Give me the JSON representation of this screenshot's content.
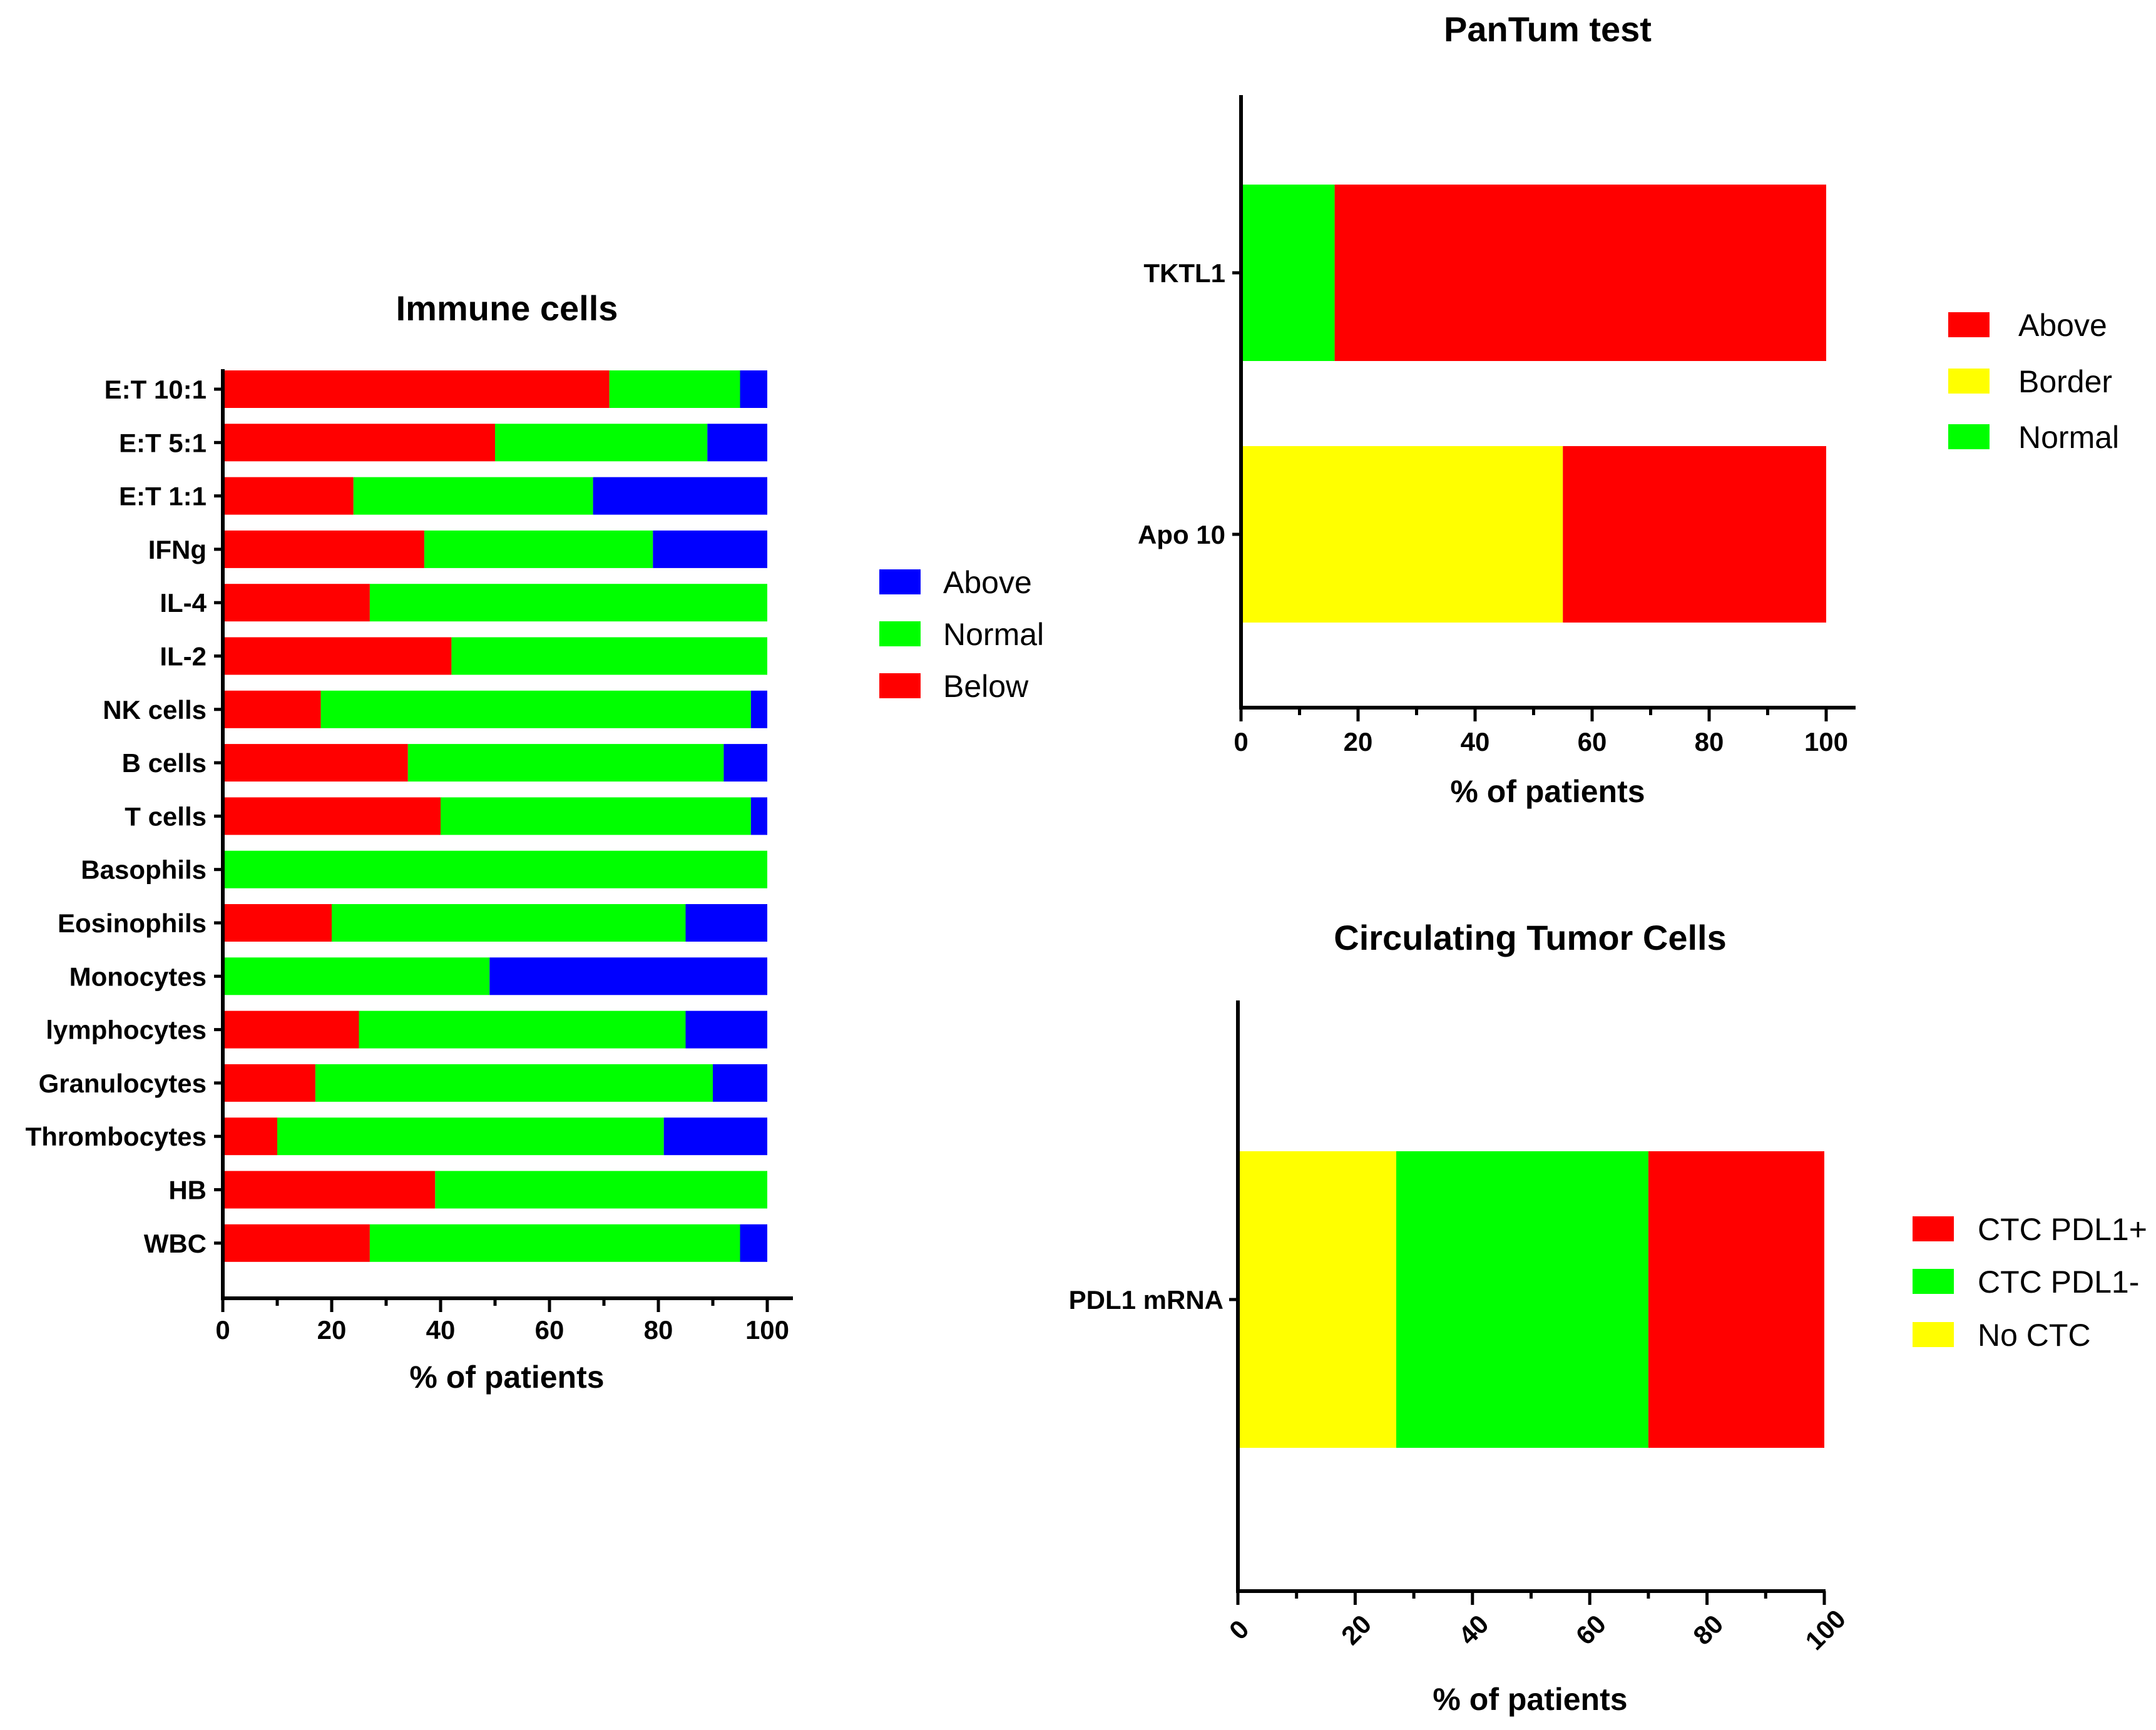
{
  "chart_data": [
    {
      "id": "immune",
      "type": "bar",
      "orientation": "horizontal",
      "stacked": true,
      "title": "Immune cells",
      "xlabel": "% of patients",
      "ylabel": "",
      "xlim": [
        0,
        100
      ],
      "xticks": [
        "0",
        "20",
        "40",
        "60",
        "80",
        "100"
      ],
      "categories": [
        "E:T 10:1",
        "E:T 5:1",
        "E:T 1:1",
        "IFNg",
        "IL-4",
        "IL-2",
        "NK cells",
        "B cells",
        "T cells",
        "Basophils",
        "Eosinophils",
        "Monocytes",
        "lymphocytes",
        "Granulocytes",
        "Thrombocytes",
        "HB",
        "WBC"
      ],
      "series": [
        {
          "name": "Below",
          "color": "#ff0000",
          "values": [
            71,
            50,
            24,
            37,
            27,
            42,
            18,
            34,
            40,
            0,
            20,
            0,
            25,
            17,
            10,
            39,
            27
          ]
        },
        {
          "name": "Normal",
          "color": "#00ff00",
          "values": [
            24,
            39,
            44,
            42,
            73,
            58,
            79,
            58,
            57,
            100,
            65,
            49,
            60,
            73,
            71,
            61,
            68
          ]
        },
        {
          "name": "Above",
          "color": "#0000ff",
          "values": [
            5,
            11,
            32,
            21,
            0,
            0,
            3,
            8,
            3,
            0,
            15,
            51,
            15,
            10,
            19,
            0,
            5
          ]
        }
      ],
      "legend": [
        "Above",
        "Normal",
        "Below"
      ],
      "legend_position": "right"
    },
    {
      "id": "pantum",
      "type": "bar",
      "orientation": "horizontal",
      "stacked": true,
      "title": "PanTum test",
      "xlabel": "% of patients",
      "ylabel": "",
      "xlim": [
        0,
        100
      ],
      "xticks": [
        "0",
        "20",
        "40",
        "60",
        "80",
        "100"
      ],
      "categories": [
        "TKTL1",
        "Apo 10"
      ],
      "series": [
        {
          "name": "Normal",
          "color": "#00ff00",
          "values": [
            16,
            0
          ]
        },
        {
          "name": "Border",
          "color": "#ffff00",
          "values": [
            0,
            55
          ]
        },
        {
          "name": "Above",
          "color": "#ff0000",
          "values": [
            84,
            45
          ]
        }
      ],
      "legend": [
        "Above",
        "Border",
        "Normal"
      ],
      "legend_position": "right"
    },
    {
      "id": "ctc",
      "type": "bar",
      "orientation": "horizontal",
      "stacked": true,
      "title": "Circulating Tumor Cells",
      "xlabel": "% of patients",
      "ylabel": "",
      "xlim": [
        0,
        100
      ],
      "xticks": [
        "0",
        "20",
        "40",
        "60",
        "80",
        "100"
      ],
      "categories": [
        "PDL1 mRNA"
      ],
      "series": [
        {
          "name": "No CTC",
          "color": "#ffff00",
          "values": [
            27
          ]
        },
        {
          "name": "CTC PDL1-",
          "color": "#00ff00",
          "values": [
            43
          ]
        },
        {
          "name": "CTC PDL1+",
          "color": "#ff0000",
          "values": [
            30
          ]
        }
      ],
      "legend": [
        "CTC PDL1+",
        "CTC PDL1-",
        "No CTC"
      ],
      "legend_position": "right"
    }
  ]
}
